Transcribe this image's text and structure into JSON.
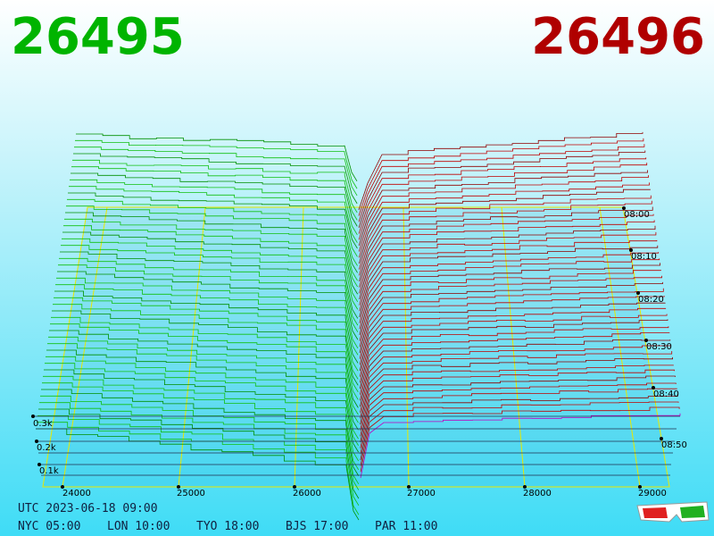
{
  "header": {
    "bid": "26495",
    "ask": "26496"
  },
  "price_axis": {
    "ticks": [
      "24000",
      "25000",
      "26000",
      "27000",
      "28000",
      "29000"
    ]
  },
  "time_axis": {
    "ticks": [
      "08:00",
      "08:10",
      "08:20",
      "08:30",
      "08:40",
      "08:50"
    ]
  },
  "volume_axis": {
    "ticks": [
      "0.3k",
      "0.2k",
      "0.1k"
    ]
  },
  "footer": {
    "utc": "UTC 2023-06-18 09:00",
    "zones": [
      "NYC 05:00",
      "LON 10:00",
      "TYO 18:00",
      "BJS 17:00",
      "PAR 11:00"
    ]
  }
}
